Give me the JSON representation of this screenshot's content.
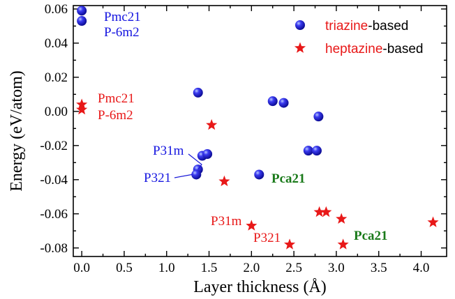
{
  "chart_data": {
    "type": "scatter",
    "xlabel": "Layer thickness (Å)",
    "ylabel": "Energy (eV/atom)",
    "xlim": [
      -0.1,
      4.3
    ],
    "ylim": [
      -0.085,
      0.062
    ],
    "xticks": [
      0.0,
      0.5,
      1.0,
      1.5,
      2.0,
      2.5,
      3.0,
      3.5,
      4.0
    ],
    "xtick_labels": [
      "0.0",
      "0.5",
      "1.0",
      "1.5",
      "2.0",
      "2.5",
      "3.0",
      "3.5",
      "4.0"
    ],
    "yticks": [
      0.06,
      0.04,
      0.02,
      0.0,
      -0.02,
      -0.04,
      -0.06,
      -0.08
    ],
    "ytick_labels": [
      "0.06",
      "0.04",
      "0.02",
      "0.00",
      "-0.02",
      "-0.04",
      "-0.06",
      "-0.08"
    ],
    "legend_position": "top-right",
    "series": [
      {
        "name_prefix": "triazine",
        "name_suffix": "-based",
        "marker": "circle",
        "color": "#1616e0",
        "x": [
          0.0,
          0.0,
          1.37,
          1.42,
          1.48,
          1.37,
          1.35,
          2.25,
          2.38,
          2.67,
          2.77,
          2.79,
          2.09
        ],
        "y": [
          0.059,
          0.053,
          0.011,
          -0.026,
          -0.025,
          -0.034,
          -0.037,
          0.006,
          0.005,
          -0.023,
          -0.023,
          -0.003,
          -0.037
        ]
      },
      {
        "name_prefix": "heptazine",
        "name_suffix": "-based",
        "marker": "star",
        "color": "#e81818",
        "x": [
          0.0,
          0.0,
          1.53,
          1.68,
          2.0,
          2.45,
          2.8,
          2.88,
          3.06,
          3.08,
          4.14
        ],
        "y": [
          0.004,
          0.001,
          -0.008,
          -0.041,
          -0.067,
          -0.078,
          -0.059,
          -0.059,
          -0.063,
          -0.078,
          -0.065
        ]
      }
    ],
    "annotations": [
      {
        "text": "Pmc21",
        "color": "#1616e0",
        "bold": false
      },
      {
        "text": "P-6m2",
        "color": "#1616e0",
        "bold": false
      },
      {
        "text": "Pmc21",
        "color": "#e81818",
        "bold": false
      },
      {
        "text": "P-6m2",
        "color": "#e81818",
        "bold": false
      },
      {
        "text": "P31m",
        "color": "#1616e0",
        "bold": false
      },
      {
        "text": "P321",
        "color": "#1616e0",
        "bold": false
      },
      {
        "text": "Pca21",
        "color": "#1a7a1a",
        "bold": true
      },
      {
        "text": "P31m",
        "color": "#e81818",
        "bold": false
      },
      {
        "text": "P321",
        "color": "#e81818",
        "bold": false
      },
      {
        "text": "Pca21",
        "color": "#1a7a1a",
        "bold": true
      }
    ]
  }
}
